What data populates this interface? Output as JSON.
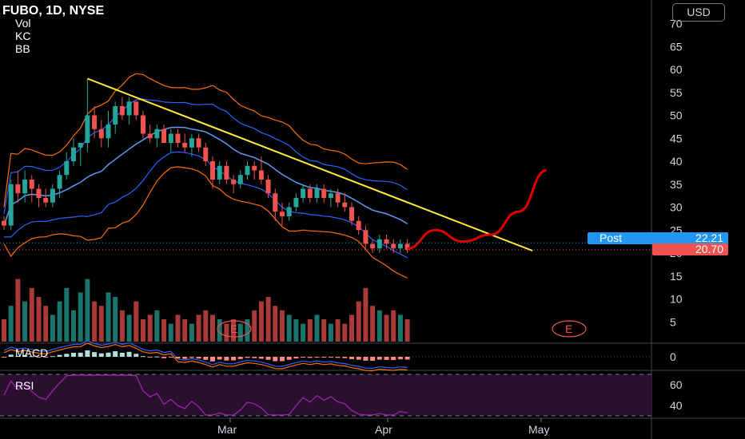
{
  "header": {
    "symbol_line": "FUBO, 1D, NYSE",
    "indicators": [
      "Vol",
      "KC",
      "BB"
    ]
  },
  "currency_button": "USD",
  "price_axis": {
    "ticks": [
      70,
      65,
      60,
      55,
      50,
      45,
      40,
      35,
      30,
      25,
      20,
      15,
      10,
      5
    ],
    "post_label": "Post",
    "post_price": "22.21",
    "last_price": "20.70"
  },
  "macd": {
    "label": "MACD",
    "tick": "0"
  },
  "rsi": {
    "label": "RSI",
    "ticks": [
      "60",
      "40"
    ]
  },
  "time_axis": {
    "labels": [
      "Mar",
      "Apr",
      "May"
    ]
  },
  "earnings_marker": "E",
  "colors": {
    "up": "#26a69a",
    "down": "#ef5350",
    "trendline": "#ffeb3b",
    "projection": "#e00000",
    "bb": "#2962ff",
    "kc": "#ff6d00",
    "rsi": "#9c27b0",
    "post_tag": "#2196f3",
    "last_tag": "#ef5350"
  },
  "chart_data": {
    "type": "candlestick",
    "title": "FUBO, 1D, NYSE",
    "ylim": [
      0,
      72
    ],
    "candles": [
      {
        "o": 27,
        "h": 28,
        "l": 25,
        "c": 26
      },
      {
        "o": 26,
        "h": 36,
        "l": 25,
        "c": 35
      },
      {
        "o": 35,
        "h": 38,
        "l": 31,
        "c": 33
      },
      {
        "o": 33,
        "h": 38,
        "l": 31,
        "c": 36
      },
      {
        "o": 36,
        "h": 37,
        "l": 31,
        "c": 34
      },
      {
        "o": 34,
        "h": 35,
        "l": 30,
        "c": 32
      },
      {
        "o": 32,
        "h": 34,
        "l": 30,
        "c": 31
      },
      {
        "o": 31,
        "h": 35,
        "l": 30,
        "c": 34
      },
      {
        "o": 34,
        "h": 38,
        "l": 32,
        "c": 37
      },
      {
        "o": 37,
        "h": 42,
        "l": 36,
        "c": 40
      },
      {
        "o": 40,
        "h": 45,
        "l": 39,
        "c": 43
      },
      {
        "o": 43,
        "h": 44,
        "l": 39,
        "c": 44
      },
      {
        "o": 44,
        "h": 58,
        "l": 42,
        "c": 50
      },
      {
        "o": 50,
        "h": 52,
        "l": 45,
        "c": 47
      },
      {
        "o": 47,
        "h": 49,
        "l": 43,
        "c": 45
      },
      {
        "o": 45,
        "h": 51,
        "l": 43,
        "c": 48
      },
      {
        "o": 48,
        "h": 53,
        "l": 46,
        "c": 52
      },
      {
        "o": 52,
        "h": 54,
        "l": 49,
        "c": 50
      },
      {
        "o": 50,
        "h": 54,
        "l": 48,
        "c": 53
      },
      {
        "o": 53,
        "h": 53,
        "l": 49,
        "c": 50
      },
      {
        "o": 50,
        "h": 51,
        "l": 45,
        "c": 46
      },
      {
        "o": 46,
        "h": 48,
        "l": 44,
        "c": 45
      },
      {
        "o": 45,
        "h": 48,
        "l": 43,
        "c": 47
      },
      {
        "o": 47,
        "h": 48,
        "l": 44,
        "c": 44
      },
      {
        "o": 44,
        "h": 47,
        "l": 42,
        "c": 46
      },
      {
        "o": 46,
        "h": 47,
        "l": 43,
        "c": 44
      },
      {
        "o": 44,
        "h": 46,
        "l": 42,
        "c": 43
      },
      {
        "o": 43,
        "h": 46,
        "l": 41,
        "c": 45
      },
      {
        "o": 45,
        "h": 46,
        "l": 42,
        "c": 43
      },
      {
        "o": 43,
        "h": 44,
        "l": 39,
        "c": 40
      },
      {
        "o": 40,
        "h": 41,
        "l": 34,
        "c": 36
      },
      {
        "o": 36,
        "h": 40,
        "l": 35,
        "c": 39
      },
      {
        "o": 39,
        "h": 40,
        "l": 35,
        "c": 36
      },
      {
        "o": 36,
        "h": 37,
        "l": 33,
        "c": 35
      },
      {
        "o": 35,
        "h": 38,
        "l": 34,
        "c": 37
      },
      {
        "o": 37,
        "h": 40,
        "l": 36,
        "c": 39
      },
      {
        "o": 39,
        "h": 40,
        "l": 36,
        "c": 38
      },
      {
        "o": 38,
        "h": 41,
        "l": 35,
        "c": 36
      },
      {
        "o": 36,
        "h": 37,
        "l": 32,
        "c": 33
      },
      {
        "o": 33,
        "h": 34,
        "l": 27,
        "c": 29
      },
      {
        "o": 29,
        "h": 31,
        "l": 26,
        "c": 28
      },
      {
        "o": 28,
        "h": 31,
        "l": 27,
        "c": 30
      },
      {
        "o": 30,
        "h": 33,
        "l": 29,
        "c": 32
      },
      {
        "o": 32,
        "h": 35,
        "l": 31,
        "c": 34
      },
      {
        "o": 34,
        "h": 35,
        "l": 31,
        "c": 32
      },
      {
        "o": 32,
        "h": 35,
        "l": 31,
        "c": 34
      },
      {
        "o": 34,
        "h": 35,
        "l": 31,
        "c": 32
      },
      {
        "o": 32,
        "h": 34,
        "l": 30,
        "c": 33
      },
      {
        "o": 33,
        "h": 34,
        "l": 30,
        "c": 31
      },
      {
        "o": 31,
        "h": 33,
        "l": 29,
        "c": 30
      },
      {
        "o": 30,
        "h": 31,
        "l": 26,
        "c": 27
      },
      {
        "o": 27,
        "h": 28,
        "l": 24,
        "c": 25
      },
      {
        "o": 25,
        "h": 26,
        "l": 21,
        "c": 22
      },
      {
        "o": 22,
        "h": 23,
        "l": 20,
        "c": 21
      },
      {
        "o": 21,
        "h": 24,
        "l": 20,
        "c": 23
      },
      {
        "o": 23,
        "h": 24,
        "l": 21,
        "c": 22
      },
      {
        "o": 22,
        "h": 23,
        "l": 20,
        "c": 21
      },
      {
        "o": 21,
        "h": 23,
        "l": 20,
        "c": 22
      },
      {
        "o": 22,
        "h": 23,
        "l": 20,
        "c": 20.7
      }
    ],
    "volume": [
      5,
      8,
      14,
      9,
      12,
      10,
      8,
      6,
      9,
      12,
      7,
      11,
      14,
      9,
      8,
      11,
      10,
      7,
      6,
      9,
      5,
      6,
      7,
      5,
      4,
      6,
      5,
      4,
      6,
      7,
      6,
      5,
      4,
      5,
      4,
      5,
      7,
      9,
      10,
      8,
      7,
      6,
      5,
      4,
      5,
      6,
      5,
      4,
      5,
      4,
      6,
      9,
      12,
      8,
      7,
      6,
      7,
      6,
      5
    ],
    "trendline": [
      {
        "i": 12,
        "p": 58
      },
      {
        "i": 76,
        "p": 20.5
      }
    ],
    "projection": [
      {
        "i": 58,
        "p": 21
      },
      {
        "i": 62,
        "p": 25
      },
      {
        "i": 66,
        "p": 22.5
      },
      {
        "i": 70,
        "p": 24
      },
      {
        "i": 74,
        "p": 29
      },
      {
        "i": 78,
        "p": 38
      }
    ],
    "post_price": 22.21,
    "last_price": 20.7
  }
}
